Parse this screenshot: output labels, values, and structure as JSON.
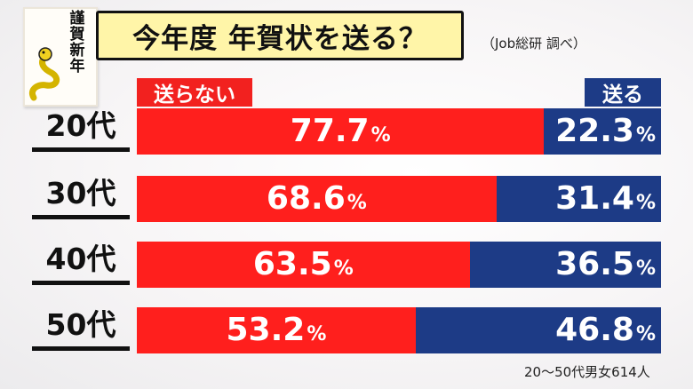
{
  "card": {
    "text": "謹賀新年",
    "icon": "snake-icon"
  },
  "title": "今年度 年賀状を送る？",
  "source": "（Job総研 調べ）",
  "legend": {
    "no": "送らない",
    "yes": "送る"
  },
  "note": "20～50代男女614人",
  "colors": {
    "no": "#ff1f1d",
    "yes": "#1d3b86",
    "title_bg": "#fff5a8"
  },
  "chart_data": {
    "type": "bar",
    "orientation": "horizontal-stacked-100",
    "title": "今年度 年賀状を送る？",
    "categories": [
      "20代",
      "30代",
      "40代",
      "50代"
    ],
    "series": [
      {
        "name": "送らない",
        "values": [
          77.7,
          68.6,
          63.5,
          53.2
        ],
        "labels": [
          "77.7",
          "68.6",
          "63.5",
          "53.2"
        ]
      },
      {
        "name": "送る",
        "values": [
          22.3,
          31.4,
          36.5,
          46.8
        ],
        "labels": [
          "22.3",
          "31.4",
          "36.5",
          "46.8"
        ]
      }
    ],
    "unit": "%",
    "xlim": [
      0,
      100
    ],
    "legend_position": "top"
  }
}
